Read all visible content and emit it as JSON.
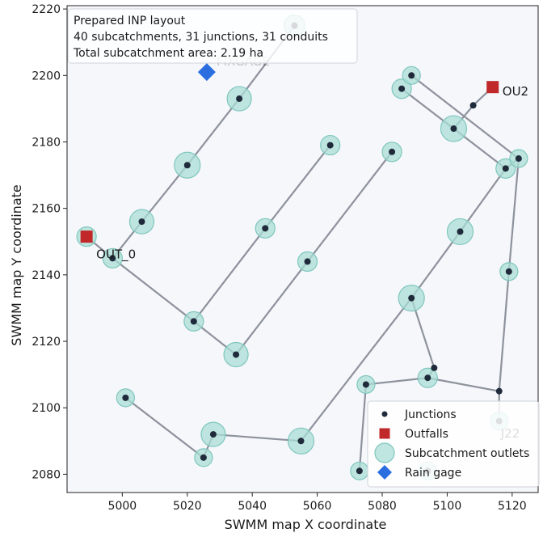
{
  "chart_data": {
    "type": "scatter",
    "xlabel": "SWMM map X coordinate",
    "ylabel": "SWMM map Y coordinate",
    "xlim": [
      4983,
      5128
    ],
    "ylim": [
      2074.5,
      2221
    ],
    "xticks": [
      5000,
      5020,
      5040,
      5060,
      5080,
      5100,
      5120
    ],
    "yticks": [
      2080,
      2100,
      2120,
      2140,
      2160,
      2180,
      2200,
      2220
    ],
    "grid": false,
    "legend_position": "bottom-right",
    "annotation_lines": [
      "Prepared INP layout",
      "40 subcatchments, 31 junctions, 31 conduits",
      "Total subcatchment area: 2.19 ha"
    ],
    "colors": {
      "plot_background": "#f5f7fb",
      "junction": "#1f2a3a",
      "outfall": "#c0282a",
      "subcatchment_fill": "#a9ded6",
      "subcatchment_edge": "#7fc7bd",
      "conduit": "#8d929c",
      "rain_gage": "#2a6ee0"
    },
    "series": [
      {
        "name": "Junctions",
        "marker": "circle",
        "points": [
          [
            4997,
            2145
          ],
          [
            5006,
            2156
          ],
          [
            5020,
            2173
          ],
          [
            5036,
            2193
          ],
          [
            5053,
            2215
          ],
          [
            5022,
            2126
          ],
          [
            5044,
            2154
          ],
          [
            5064,
            2179
          ],
          [
            5035,
            2116
          ],
          [
            5057,
            2144
          ],
          [
            5083,
            2177
          ],
          [
            5104,
            2153
          ],
          [
            5089,
            2133
          ],
          [
            5096,
            2112
          ],
          [
            5094,
            2109
          ],
          [
            5075,
            2107
          ],
          [
            5116,
            2105
          ],
          [
            5119,
            2141
          ],
          [
            5118,
            2172
          ],
          [
            5122,
            2175
          ],
          [
            5102,
            2184
          ],
          [
            5108,
            2191
          ],
          [
            5086,
            2196
          ],
          [
            5089,
            2200
          ],
          [
            5116,
            2096
          ],
          [
            5001,
            2103
          ],
          [
            5025,
            2085
          ],
          [
            5028,
            2092
          ],
          [
            5055,
            2090
          ],
          [
            5073,
            2081
          ],
          [
            5094,
            2081
          ]
        ]
      },
      {
        "name": "Outfalls",
        "marker": "square",
        "points": [
          [
            4989,
            2151.5
          ],
          [
            5114,
            2196.5
          ]
        ]
      },
      {
        "name": "Subcatchment outlets",
        "marker": "circle-large",
        "points": [
          [
            4997,
            2145,
            12
          ],
          [
            5006,
            2156,
            15
          ],
          [
            5020,
            2173,
            16
          ],
          [
            5036,
            2193,
            15
          ],
          [
            5053,
            2215,
            13
          ],
          [
            5022,
            2126,
            12
          ],
          [
            5044,
            2154,
            12
          ],
          [
            5064,
            2179,
            12
          ],
          [
            5035,
            2116,
            15
          ],
          [
            5057,
            2144,
            12
          ],
          [
            5083,
            2177,
            12
          ],
          [
            5104,
            2153,
            16
          ],
          [
            5089,
            2133,
            16
          ],
          [
            5094,
            2109,
            12
          ],
          [
            5075,
            2107,
            11
          ],
          [
            5119,
            2141,
            11
          ],
          [
            5118,
            2172,
            12
          ],
          [
            5122,
            2175,
            11
          ],
          [
            5102,
            2184,
            16
          ],
          [
            5086,
            2196,
            12
          ],
          [
            5089,
            2200,
            11
          ],
          [
            5116,
            2096,
            11
          ],
          [
            5001,
            2103,
            11
          ],
          [
            5025,
            2085,
            11
          ],
          [
            5028,
            2092,
            15
          ],
          [
            5055,
            2090,
            16
          ],
          [
            5073,
            2081,
            11
          ],
          [
            5094,
            2081,
            11
          ],
          [
            4989,
            2151.5,
            12
          ]
        ]
      },
      {
        "name": "Rain gage",
        "marker": "diamond",
        "points": [
          [
            5026,
            2201
          ]
        ]
      }
    ],
    "conduits": [
      [
        [
          4989,
          2151.5
        ],
        [
          4997,
          2145
        ]
      ],
      [
        [
          4997,
          2145
        ],
        [
          5006,
          2156
        ]
      ],
      [
        [
          5006,
          2156
        ],
        [
          5020,
          2173
        ]
      ],
      [
        [
          5020,
          2173
        ],
        [
          5036,
          2193
        ]
      ],
      [
        [
          5036,
          2193
        ],
        [
          5053,
          2215
        ]
      ],
      [
        [
          4997,
          2145
        ],
        [
          5022,
          2126
        ]
      ],
      [
        [
          5022,
          2126
        ],
        [
          5035,
          2116
        ]
      ],
      [
        [
          5022,
          2126
        ],
        [
          5044,
          2154
        ]
      ],
      [
        [
          5044,
          2154
        ],
        [
          5064,
          2179
        ]
      ],
      [
        [
          5035,
          2116
        ],
        [
          5057,
          2144
        ]
      ],
      [
        [
          5057,
          2144
        ],
        [
          5083,
          2177
        ]
      ],
      [
        [
          5055,
          2090
        ],
        [
          5089,
          2133
        ]
      ],
      [
        [
          5089,
          2133
        ],
        [
          5104,
          2153
        ]
      ],
      [
        [
          5104,
          2153
        ],
        [
          5118,
          2172
        ]
      ],
      [
        [
          5089,
          2133
        ],
        [
          5096,
          2112
        ]
      ],
      [
        [
          5096,
          2112
        ],
        [
          5094,
          2109
        ]
      ],
      [
        [
          5075,
          2107
        ],
        [
          5094,
          2109
        ]
      ],
      [
        [
          5094,
          2109
        ],
        [
          5116,
          2105
        ]
      ],
      [
        [
          5075,
          2107
        ],
        [
          5073,
          2081
        ]
      ],
      [
        [
          5116,
          2105
        ],
        [
          5119,
          2141
        ]
      ],
      [
        [
          5119,
          2141
        ],
        [
          5122,
          2175
        ]
      ],
      [
        [
          5116,
          2105
        ],
        [
          5116,
          2096
        ]
      ],
      [
        [
          5118,
          2172
        ],
        [
          5122,
          2175
        ]
      ],
      [
        [
          5102,
          2184
        ],
        [
          5118,
          2172
        ]
      ],
      [
        [
          5089,
          2200
        ],
        [
          5122,
          2175
        ]
      ],
      [
        [
          5086,
          2196
        ],
        [
          5102,
          2184
        ]
      ],
      [
        [
          5102,
          2184
        ],
        [
          5108,
          2191
        ]
      ],
      [
        [
          5108,
          2191
        ],
        [
          5114,
          2196.5
        ]
      ],
      [
        [
          5001,
          2103
        ],
        [
          5025,
          2085
        ]
      ],
      [
        [
          5025,
          2085
        ],
        [
          5028,
          2092
        ]
      ],
      [
        [
          5028,
          2092
        ],
        [
          5055,
          2090
        ]
      ]
    ],
    "labels": [
      {
        "text": "OUT_0",
        "x": 4992,
        "y": 2145
      },
      {
        "text": "OU2",
        "x": 5117,
        "y": 2194
      },
      {
        "text": "J22",
        "x": 5116.5,
        "y": 2091
      },
      {
        "text": "FIXGAGE",
        "x": 5029,
        "y": 2203,
        "faded": true
      }
    ]
  }
}
